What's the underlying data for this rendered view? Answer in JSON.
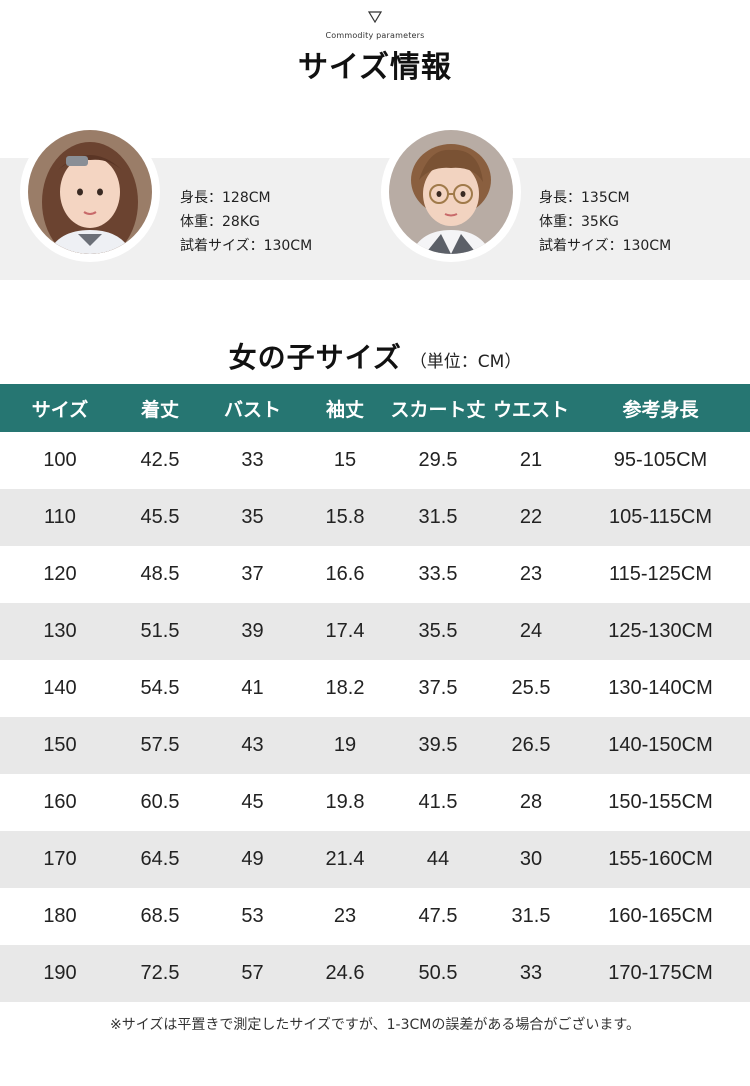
{
  "header": {
    "subtitle": "Commodity parameters",
    "title": "サイズ情報"
  },
  "models": [
    {
      "name": "girl-model",
      "lines": [
        "身長：128CM",
        "体重：28KG",
        "試着サイズ：130CM"
      ]
    },
    {
      "name": "boy-model",
      "lines": [
        "身長：135CM",
        "体重：35KG",
        "試着サイズ：130CM"
      ]
    }
  ],
  "size_chart": {
    "title": "女の子サイズ",
    "unit": "（単位：CM）",
    "columns": [
      "サイズ",
      "着丈",
      "バスト",
      "袖丈",
      "スカート丈",
      "ウエスト",
      "参考身長"
    ],
    "rows": [
      [
        "100",
        "42.5",
        "33",
        "15",
        "29.5",
        "21",
        "95-105CM"
      ],
      [
        "110",
        "45.5",
        "35",
        "15.8",
        "31.5",
        "22",
        "105-115CM"
      ],
      [
        "120",
        "48.5",
        "37",
        "16.6",
        "33.5",
        "23",
        "115-125CM"
      ],
      [
        "130",
        "51.5",
        "39",
        "17.4",
        "35.5",
        "24",
        "125-130CM"
      ],
      [
        "140",
        "54.5",
        "41",
        "18.2",
        "37.5",
        "25.5",
        "130-140CM"
      ],
      [
        "150",
        "57.5",
        "43",
        "19",
        "39.5",
        "26.5",
        "140-150CM"
      ],
      [
        "160",
        "60.5",
        "45",
        "19.8",
        "41.5",
        "28",
        "150-155CM"
      ],
      [
        "170",
        "64.5",
        "49",
        "21.4",
        "44",
        "30",
        "155-160CM"
      ],
      [
        "180",
        "68.5",
        "53",
        "23",
        "47.5",
        "31.5",
        "160-165CM"
      ],
      [
        "190",
        "72.5",
        "57",
        "24.6",
        "50.5",
        "33",
        "170-175CM"
      ]
    ]
  },
  "note": "※サイズは平置きで測定したサイズですが、1-3CMの誤差がある場合がございます。",
  "colors": {
    "header_bg": "#267672",
    "stripe_bg": "#e8e8e8",
    "model_band_bg": "#f0f0f0"
  },
  "icons": {
    "header_marker": "down-triangle-icon"
  }
}
